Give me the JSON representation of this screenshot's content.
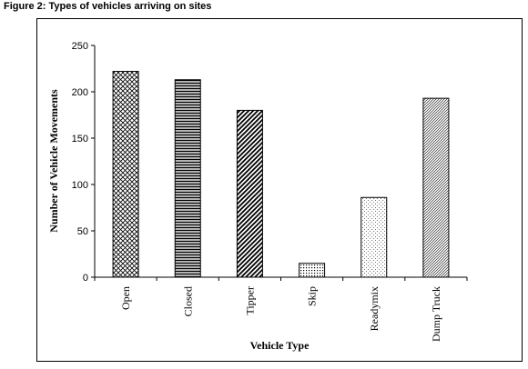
{
  "figure_title": "Figure 2:  Types of vehicles arriving on sites",
  "chart_data": {
    "type": "bar",
    "categories": [
      "Open",
      "Closed",
      "Tipper",
      "Skip",
      "Readymix",
      "Dump Truck"
    ],
    "values": [
      222,
      213,
      180,
      15,
      86,
      193
    ],
    "patterns": [
      "crosshatch",
      "horizontal",
      "diagonal-thick",
      "dots",
      "sparse-dots",
      "diagonal-fine"
    ],
    "xlabel": "Vehicle Type",
    "ylabel": "Number of Vehicle Movements",
    "ylim": [
      0,
      250
    ],
    "yticks": [
      0,
      50,
      100,
      150,
      200,
      250
    ],
    "grid": false,
    "legend": "none"
  }
}
